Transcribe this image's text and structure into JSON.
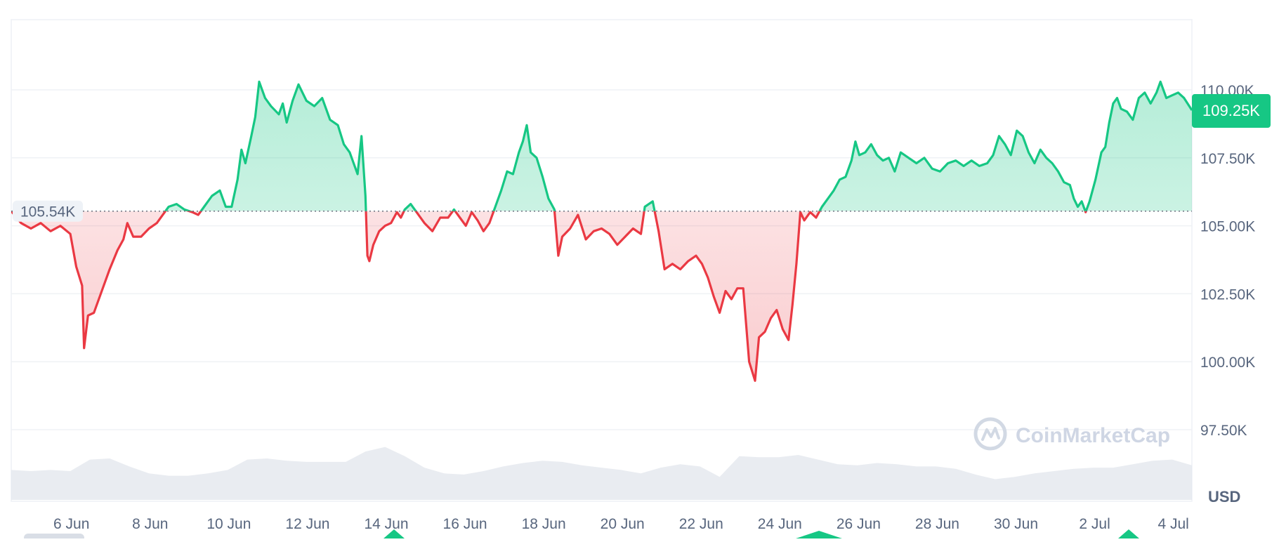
{
  "chart_data": {
    "type": "area",
    "currency_label": "USD",
    "watermark": "CoinMarketCap",
    "reference_value": 105540,
    "reference_label": "105.54K",
    "current_value": 109250,
    "current_label": "109.25K",
    "ylim": [
      95000,
      111000
    ],
    "y_ticks": [
      {
        "value": 110000,
        "label": "110.00K"
      },
      {
        "value": 107500,
        "label": "107.50K"
      },
      {
        "value": 105000,
        "label": "105.00K"
      },
      {
        "value": 102500,
        "label": "102.50K"
      },
      {
        "value": 100000,
        "label": "100.00K"
      },
      {
        "value": 97500,
        "label": "97.50K"
      }
    ],
    "x_ticks": [
      {
        "t": 1.53,
        "label": "6 Jun"
      },
      {
        "t": 3.53,
        "label": "8 Jun"
      },
      {
        "t": 5.53,
        "label": "10 Jun"
      },
      {
        "t": 7.53,
        "label": "12 Jun"
      },
      {
        "t": 9.53,
        "label": "14 Jun"
      },
      {
        "t": 11.53,
        "label": "16 Jun"
      },
      {
        "t": 13.53,
        "label": "18 Jun"
      },
      {
        "t": 15.53,
        "label": "20 Jun"
      },
      {
        "t": 17.53,
        "label": "22 Jun"
      },
      {
        "t": 19.53,
        "label": "24 Jun"
      },
      {
        "t": 21.53,
        "label": "26 Jun"
      },
      {
        "t": 23.53,
        "label": "28 Jun"
      },
      {
        "t": 25.53,
        "label": "30 Jun"
      },
      {
        "t": 27.53,
        "label": "2 Jul"
      },
      {
        "t": 29.53,
        "label": "4 Jul"
      }
    ],
    "price_series": [
      [
        0.0,
        105540
      ],
      [
        0.25,
        105100
      ],
      [
        0.5,
        104900
      ],
      [
        0.75,
        105100
      ],
      [
        1.0,
        104800
      ],
      [
        1.25,
        105000
      ],
      [
        1.5,
        104700
      ],
      [
        1.65,
        103500
      ],
      [
        1.8,
        102800
      ],
      [
        1.85,
        100500
      ],
      [
        1.95,
        101700
      ],
      [
        2.1,
        101800
      ],
      [
        2.3,
        102600
      ],
      [
        2.5,
        103400
      ],
      [
        2.7,
        104100
      ],
      [
        2.85,
        104500
      ],
      [
        2.95,
        105100
      ],
      [
        3.1,
        104600
      ],
      [
        3.3,
        104600
      ],
      [
        3.5,
        104900
      ],
      [
        3.7,
        105100
      ],
      [
        3.85,
        105400
      ],
      [
        4.0,
        105700
      ],
      [
        4.2,
        105800
      ],
      [
        4.4,
        105600
      ],
      [
        4.6,
        105500
      ],
      [
        4.75,
        105400
      ],
      [
        4.9,
        105700
      ],
      [
        5.1,
        106100
      ],
      [
        5.3,
        106300
      ],
      [
        5.45,
        105700
      ],
      [
        5.6,
        105700
      ],
      [
        5.75,
        106700
      ],
      [
        5.85,
        107800
      ],
      [
        5.95,
        107300
      ],
      [
        6.1,
        108300
      ],
      [
        6.2,
        109000
      ],
      [
        6.3,
        110300
      ],
      [
        6.45,
        109700
      ],
      [
        6.6,
        109400
      ],
      [
        6.8,
        109100
      ],
      [
        6.9,
        109500
      ],
      [
        7.0,
        108800
      ],
      [
        7.15,
        109600
      ],
      [
        7.3,
        110200
      ],
      [
        7.5,
        109600
      ],
      [
        7.7,
        109400
      ],
      [
        7.9,
        109700
      ],
      [
        8.1,
        108900
      ],
      [
        8.3,
        108700
      ],
      [
        8.45,
        108000
      ],
      [
        8.6,
        107700
      ],
      [
        8.7,
        107300
      ],
      [
        8.8,
        106900
      ],
      [
        8.9,
        108300
      ],
      [
        9.0,
        106100
      ],
      [
        9.05,
        103900
      ],
      [
        9.1,
        103700
      ],
      [
        9.2,
        104300
      ],
      [
        9.35,
        104800
      ],
      [
        9.5,
        105000
      ],
      [
        9.65,
        105100
      ],
      [
        9.8,
        105500
      ],
      [
        9.9,
        105300
      ],
      [
        10.0,
        105600
      ],
      [
        10.15,
        105800
      ],
      [
        10.3,
        105500
      ],
      [
        10.5,
        105100
      ],
      [
        10.7,
        104800
      ],
      [
        10.9,
        105300
      ],
      [
        11.1,
        105300
      ],
      [
        11.25,
        105600
      ],
      [
        11.4,
        105300
      ],
      [
        11.55,
        105000
      ],
      [
        11.7,
        105500
      ],
      [
        11.85,
        105200
      ],
      [
        12.0,
        104800
      ],
      [
        12.15,
        105100
      ],
      [
        12.3,
        105700
      ],
      [
        12.45,
        106300
      ],
      [
        12.6,
        107000
      ],
      [
        12.75,
        106900
      ],
      [
        12.9,
        107700
      ],
      [
        13.0,
        108100
      ],
      [
        13.1,
        108700
      ],
      [
        13.2,
        107700
      ],
      [
        13.35,
        107500
      ],
      [
        13.5,
        106800
      ],
      [
        13.65,
        106000
      ],
      [
        13.8,
        105600
      ],
      [
        13.9,
        103900
      ],
      [
        14.0,
        104600
      ],
      [
        14.2,
        104900
      ],
      [
        14.4,
        105400
      ],
      [
        14.6,
        104500
      ],
      [
        14.8,
        104800
      ],
      [
        15.0,
        104900
      ],
      [
        15.2,
        104700
      ],
      [
        15.4,
        104300
      ],
      [
        15.6,
        104600
      ],
      [
        15.8,
        104900
      ],
      [
        16.0,
        104700
      ],
      [
        16.1,
        105700
      ],
      [
        16.3,
        105900
      ],
      [
        16.45,
        104800
      ],
      [
        16.6,
        103400
      ],
      [
        16.8,
        103600
      ],
      [
        17.0,
        103400
      ],
      [
        17.2,
        103700
      ],
      [
        17.4,
        103900
      ],
      [
        17.55,
        103600
      ],
      [
        17.7,
        103100
      ],
      [
        17.85,
        102400
      ],
      [
        18.0,
        101800
      ],
      [
        18.15,
        102600
      ],
      [
        18.3,
        102300
      ],
      [
        18.45,
        102700
      ],
      [
        18.6,
        102700
      ],
      [
        18.75,
        100000
      ],
      [
        18.9,
        99300
      ],
      [
        19.0,
        100900
      ],
      [
        19.15,
        101100
      ],
      [
        19.3,
        101600
      ],
      [
        19.45,
        101900
      ],
      [
        19.6,
        101200
      ],
      [
        19.75,
        100800
      ],
      [
        19.85,
        102100
      ],
      [
        19.95,
        103600
      ],
      [
        20.05,
        105500
      ],
      [
        20.15,
        105200
      ],
      [
        20.3,
        105500
      ],
      [
        20.45,
        105300
      ],
      [
        20.6,
        105700
      ],
      [
        20.75,
        106000
      ],
      [
        20.9,
        106300
      ],
      [
        21.05,
        106700
      ],
      [
        21.2,
        106800
      ],
      [
        21.35,
        107400
      ],
      [
        21.45,
        108100
      ],
      [
        21.55,
        107600
      ],
      [
        21.7,
        107700
      ],
      [
        21.85,
        108000
      ],
      [
        22.0,
        107600
      ],
      [
        22.15,
        107400
      ],
      [
        22.3,
        107500
      ],
      [
        22.45,
        107000
      ],
      [
        22.6,
        107700
      ],
      [
        22.8,
        107500
      ],
      [
        23.0,
        107300
      ],
      [
        23.2,
        107500
      ],
      [
        23.4,
        107100
      ],
      [
        23.6,
        107000
      ],
      [
        23.8,
        107300
      ],
      [
        24.0,
        107400
      ],
      [
        24.2,
        107200
      ],
      [
        24.4,
        107400
      ],
      [
        24.6,
        107200
      ],
      [
        24.8,
        107300
      ],
      [
        24.95,
        107600
      ],
      [
        25.1,
        108300
      ],
      [
        25.25,
        108000
      ],
      [
        25.4,
        107600
      ],
      [
        25.55,
        108500
      ],
      [
        25.7,
        108300
      ],
      [
        25.85,
        107700
      ],
      [
        26.0,
        107300
      ],
      [
        26.15,
        107800
      ],
      [
        26.3,
        107500
      ],
      [
        26.45,
        107300
      ],
      [
        26.6,
        107000
      ],
      [
        26.75,
        106600
      ],
      [
        26.9,
        106500
      ],
      [
        27.0,
        106000
      ],
      [
        27.1,
        105700
      ],
      [
        27.2,
        105900
      ],
      [
        27.3,
        105500
      ],
      [
        27.4,
        105900
      ],
      [
        27.55,
        106700
      ],
      [
        27.7,
        107700
      ],
      [
        27.8,
        107900
      ],
      [
        27.9,
        108800
      ],
      [
        28.0,
        109500
      ],
      [
        28.1,
        109700
      ],
      [
        28.2,
        109300
      ],
      [
        28.35,
        109200
      ],
      [
        28.5,
        108900
      ],
      [
        28.65,
        109700
      ],
      [
        28.8,
        109900
      ],
      [
        28.95,
        109500
      ],
      [
        29.1,
        109900
      ],
      [
        29.2,
        110300
      ],
      [
        29.35,
        109700
      ],
      [
        29.5,
        109800
      ],
      [
        29.65,
        109900
      ],
      [
        29.8,
        109700
      ],
      [
        30.0,
        109250
      ]
    ],
    "volume_series": [
      [
        0.0,
        0.52
      ],
      [
        0.5,
        0.5
      ],
      [
        1.0,
        0.52
      ],
      [
        1.5,
        0.5
      ],
      [
        2.0,
        0.7
      ],
      [
        2.5,
        0.72
      ],
      [
        3.0,
        0.58
      ],
      [
        3.5,
        0.46
      ],
      [
        4.0,
        0.42
      ],
      [
        4.5,
        0.42
      ],
      [
        5.0,
        0.46
      ],
      [
        5.5,
        0.52
      ],
      [
        6.0,
        0.7
      ],
      [
        6.5,
        0.72
      ],
      [
        7.0,
        0.68
      ],
      [
        7.5,
        0.66
      ],
      [
        8.0,
        0.66
      ],
      [
        8.5,
        0.66
      ],
      [
        9.0,
        0.84
      ],
      [
        9.5,
        0.92
      ],
      [
        10.0,
        0.76
      ],
      [
        10.5,
        0.56
      ],
      [
        11.0,
        0.46
      ],
      [
        11.5,
        0.44
      ],
      [
        12.0,
        0.5
      ],
      [
        12.5,
        0.58
      ],
      [
        13.0,
        0.64
      ],
      [
        13.5,
        0.68
      ],
      [
        14.0,
        0.66
      ],
      [
        14.5,
        0.6
      ],
      [
        15.0,
        0.56
      ],
      [
        15.5,
        0.52
      ],
      [
        16.0,
        0.46
      ],
      [
        16.5,
        0.56
      ],
      [
        17.0,
        0.62
      ],
      [
        17.5,
        0.58
      ],
      [
        18.0,
        0.4
      ],
      [
        18.5,
        0.76
      ],
      [
        19.0,
        0.74
      ],
      [
        19.5,
        0.74
      ],
      [
        20.0,
        0.78
      ],
      [
        20.5,
        0.7
      ],
      [
        21.0,
        0.62
      ],
      [
        21.5,
        0.6
      ],
      [
        22.0,
        0.64
      ],
      [
        22.5,
        0.62
      ],
      [
        23.0,
        0.58
      ],
      [
        23.5,
        0.58
      ],
      [
        24.0,
        0.54
      ],
      [
        24.5,
        0.44
      ],
      [
        25.0,
        0.36
      ],
      [
        25.5,
        0.4
      ],
      [
        26.0,
        0.46
      ],
      [
        26.5,
        0.5
      ],
      [
        27.0,
        0.54
      ],
      [
        27.5,
        0.56
      ],
      [
        28.0,
        0.56
      ],
      [
        28.5,
        0.62
      ],
      [
        29.0,
        0.68
      ],
      [
        29.5,
        0.7
      ],
      [
        30.0,
        0.6
      ]
    ],
    "colors": {
      "up_line": "#16c784",
      "down_line": "#ea3943",
      "up_fill": "#16c784",
      "down_fill": "#ea3943",
      "badge_bg": "#16c784",
      "badge_text": "#ffffff",
      "axis_text": "#58667e",
      "grid": "#eff2f5",
      "volume": "#e2e6ec",
      "watermark": "#cfd6e4",
      "reference_line": "#6b7280",
      "reference_chip_bg": "#eef2f7"
    }
  }
}
